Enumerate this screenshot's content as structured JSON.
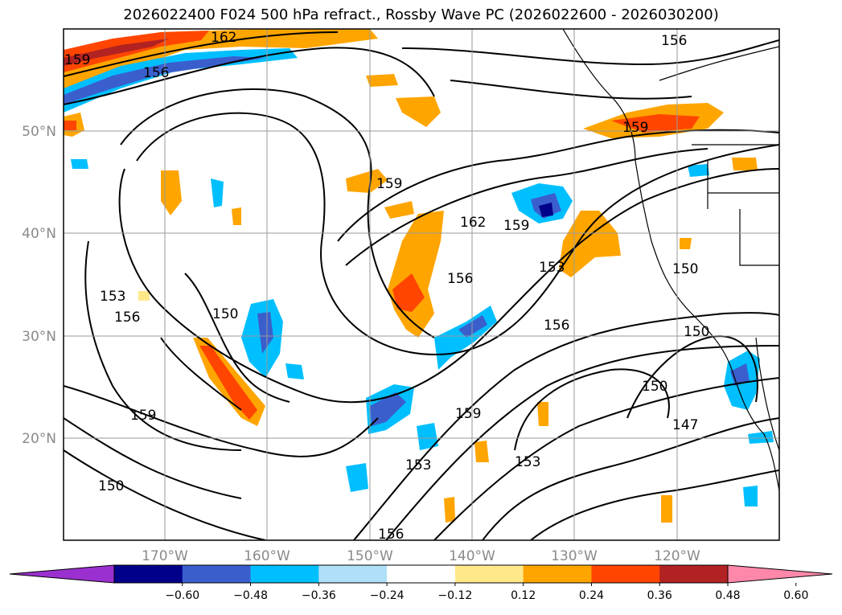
{
  "title": "2026022400 F024 500 hPa refract., Rossby Wave PC (2026022600 - 2026030200)",
  "lat_labels": [
    "50°N",
    "40°N",
    "30°N",
    "20°N"
  ],
  "lon_labels": [
    "170°W",
    "160°W",
    "150°W",
    "140°W",
    "130°W",
    "120°W"
  ],
  "contour_labels": [
    "162",
    "159",
    "156",
    "159",
    "162",
    "159",
    "156",
    "153",
    "153",
    "156",
    "150",
    "156",
    "159",
    "153",
    "159",
    "150",
    "150",
    "159",
    "150",
    "147",
    "153",
    "156",
    "150",
    "156"
  ],
  "colorbar": {
    "ticks": [
      "−0.60",
      "−0.48",
      "−0.36",
      "−0.24",
      "−0.12",
      "0.12",
      "0.24",
      "0.36",
      "0.48",
      "0.60"
    ],
    "colors": [
      "#9b30d0",
      "#00008b",
      "#3a5fcd",
      "#00bfff",
      "#b0e0f8",
      "#ffffff",
      "#ffe88a",
      "#ffa500",
      "#ff4500",
      "#b22222",
      "#ff88aa"
    ]
  }
}
